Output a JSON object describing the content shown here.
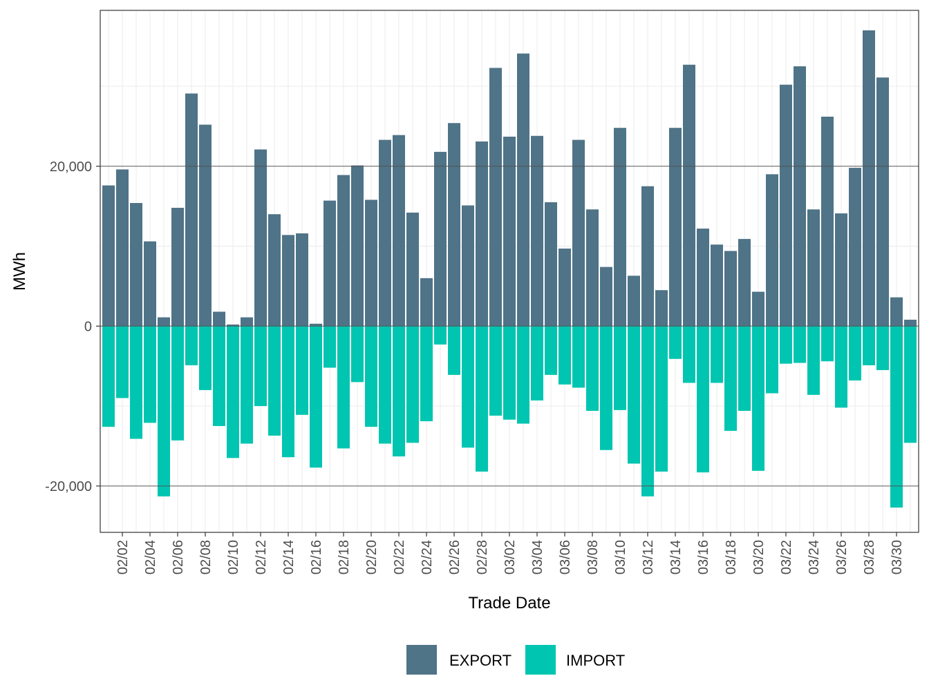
{
  "chart_data": {
    "type": "bar",
    "xlabel": "Trade Date",
    "ylabel": "MWh",
    "ylim": [
      -25800,
      39500
    ],
    "yticks": [
      -20000,
      0,
      20000
    ],
    "ytick_labels": [
      "-20,000",
      "0",
      "20,000"
    ],
    "grid": true,
    "legend_position": "bottom",
    "categories": [
      "02/01",
      "02/02",
      "02/03",
      "02/04",
      "02/05",
      "02/06",
      "02/07",
      "02/08",
      "02/09",
      "02/10",
      "02/11",
      "02/12",
      "02/13",
      "02/14",
      "02/15",
      "02/16",
      "02/17",
      "02/18",
      "02/19",
      "02/20",
      "02/21",
      "02/22",
      "02/23",
      "02/24",
      "02/25",
      "02/26",
      "02/27",
      "02/28",
      "03/01",
      "03/02",
      "03/03",
      "03/04",
      "03/05",
      "03/06",
      "03/07",
      "03/08",
      "03/09",
      "03/10",
      "03/11",
      "03/12",
      "03/13",
      "03/14",
      "03/15",
      "03/16",
      "03/17",
      "03/18",
      "03/19",
      "03/20",
      "03/21",
      "03/22",
      "03/23",
      "03/24",
      "03/25",
      "03/26",
      "03/27",
      "03/28",
      "03/29",
      "03/30",
      "03/31"
    ],
    "xtick_labels": [
      "02/02",
      "02/04",
      "02/06",
      "02/08",
      "02/10",
      "02/12",
      "02/14",
      "02/16",
      "02/18",
      "02/20",
      "02/22",
      "02/24",
      "02/26",
      "02/28",
      "03/02",
      "03/04",
      "03/06",
      "03/08",
      "03/10",
      "03/12",
      "03/14",
      "03/16",
      "03/18",
      "03/20",
      "03/22",
      "03/24",
      "03/26",
      "03/28",
      "03/30"
    ],
    "series": [
      {
        "name": "EXPORT",
        "color": "#4f7387",
        "values": [
          17600,
          19600,
          15400,
          10600,
          1100,
          14800,
          29100,
          25200,
          1800,
          200,
          1100,
          22100,
          14000,
          11400,
          11600,
          300,
          15700,
          18900,
          20100,
          15800,
          23300,
          23900,
          14200,
          6000,
          21800,
          25400,
          15100,
          23100,
          32300,
          23700,
          34100,
          23800,
          15500,
          9700,
          23300,
          14600,
          7400,
          24800,
          6300,
          17500,
          4500,
          24800,
          32700,
          12200,
          10200,
          9400,
          10900,
          4300,
          19000,
          30200,
          32500,
          14600,
          26200,
          14100,
          19800,
          37000,
          31100,
          3600,
          800
        ]
      },
      {
        "name": "IMPORT",
        "color": "#00c5b0",
        "values": [
          -12600,
          -9000,
          -14100,
          -12100,
          -21300,
          -14300,
          -4900,
          -8000,
          -12500,
          -16500,
          -14700,
          -10000,
          -13700,
          -16400,
          -11100,
          -17700,
          -5200,
          -15300,
          -7000,
          -12600,
          -14700,
          -16300,
          -14600,
          -11900,
          -2300,
          -6100,
          -15200,
          -18200,
          -11200,
          -11700,
          -12200,
          -9300,
          -6100,
          -7300,
          -7700,
          -10600,
          -15500,
          -10500,
          -17200,
          -21300,
          -18200,
          -4100,
          -7100,
          -18300,
          -7100,
          -13100,
          -10600,
          -18100,
          -8400,
          -4700,
          -4600,
          -8600,
          -4400,
          -10200,
          -6800,
          -4900,
          -5500,
          -22700,
          -14600
        ]
      }
    ]
  }
}
